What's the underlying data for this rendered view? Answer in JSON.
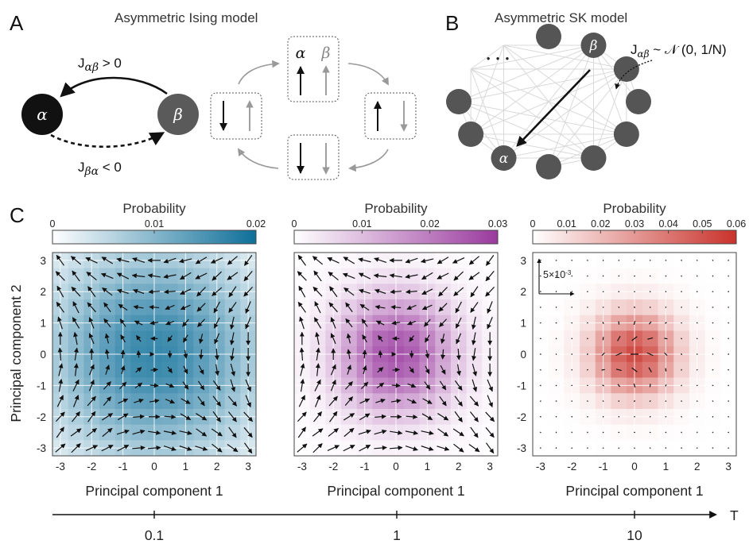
{
  "panel_a": {
    "letter": "A",
    "title": "Asymmetric Ising model",
    "node_alpha": "α",
    "node_beta": "β",
    "j_ab_sym": "J",
    "j_ab_sub": "αβ",
    "j_ab_cond": " > 0",
    "j_ba_sym": "J",
    "j_ba_sub": "βα",
    "j_ba_cond": " < 0",
    "cycle_label_alpha": "α",
    "cycle_label_beta": "β",
    "cycle_states": [
      {
        "alpha": "up",
        "beta": "up"
      },
      {
        "alpha": "up",
        "beta": "down"
      },
      {
        "alpha": "down",
        "beta": "down"
      },
      {
        "alpha": "down",
        "beta": "up"
      }
    ]
  },
  "panel_b": {
    "letter": "B",
    "title": "Asymmetric SK model",
    "node_alpha": "α",
    "node_beta": "β",
    "ellipsis": "• • •",
    "coupling_sym": "J",
    "coupling_sub": "αβ",
    "coupling_dist": " ~ 𝒩 (0, 1/N)"
  },
  "panel_c": {
    "letter": "C",
    "colorbar_title": "Probability",
    "xlabel": "Principal component 1",
    "ylabel": "Principal component 2",
    "axis_ticks": [
      "-3",
      "-2",
      "-1",
      "0",
      "1",
      "2",
      "3"
    ],
    "scale_arrow_label": "5×10",
    "scale_arrow_exp": "-3"
  },
  "temperature_axis": {
    "label": "T",
    "ticks": [
      "0.1",
      "1",
      "10"
    ]
  },
  "chart_data": [
    {
      "type": "heatmap",
      "title": "",
      "temperature": "0.1",
      "colormap": [
        "#ffffff",
        "#0e6f99"
      ],
      "colorbar_ticks": [
        "0",
        "0.01",
        "0.02"
      ],
      "colorbar_range": [
        0,
        0.02
      ],
      "xlabel": "Principal component 1",
      "ylabel": "Principal component 2",
      "xlim": [
        -3,
        3
      ],
      "ylim": [
        -3,
        3
      ],
      "grid_centers": [
        -3,
        -2.5,
        -2,
        -1.5,
        -1,
        -0.5,
        0,
        0.5,
        1,
        1.5,
        2,
        2.5,
        3
      ],
      "peak_probability": 0.0165,
      "distribution_width": 2.4,
      "flow": "clockwise rotation around origin",
      "arrow_magnitude": "large"
    },
    {
      "type": "heatmap",
      "title": "",
      "temperature": "1",
      "colormap": [
        "#ffffff",
        "#9a3a9e"
      ],
      "colorbar_ticks": [
        "0",
        "0.01",
        "0.02",
        "0.03"
      ],
      "colorbar_range": [
        0,
        0.03
      ],
      "xlabel": "Principal component 1",
      "ylabel": "",
      "xlim": [
        -3,
        3
      ],
      "ylim": [
        -3,
        3
      ],
      "grid_centers": [
        -3,
        -2.5,
        -2,
        -1.5,
        -1,
        -0.5,
        0,
        0.5,
        1,
        1.5,
        2,
        2.5,
        3
      ],
      "peak_probability": 0.026,
      "distribution_width": 1.35,
      "flow": "clockwise rotation around origin",
      "arrow_magnitude": "large"
    },
    {
      "type": "heatmap",
      "title": "",
      "temperature": "10",
      "colormap": [
        "#ffffff",
        "#c9322b"
      ],
      "colorbar_ticks": [
        "0",
        "0.01",
        "0.02",
        "0.03",
        "0.04",
        "0.05",
        "0.06"
      ],
      "colorbar_range": [
        0,
        0.06
      ],
      "xlabel": "Principal component 1",
      "ylabel": "",
      "xlim": [
        -3,
        3
      ],
      "ylim": [
        -3,
        3
      ],
      "grid_centers": [
        -3,
        -2.5,
        -2,
        -1.5,
        -1,
        -0.5,
        0,
        0.5,
        1,
        1.5,
        2,
        2.5,
        3
      ],
      "peak_probability": 0.052,
      "distribution_width": 0.95,
      "flow": "weak, nearly random",
      "arrow_magnitude": "small"
    }
  ]
}
